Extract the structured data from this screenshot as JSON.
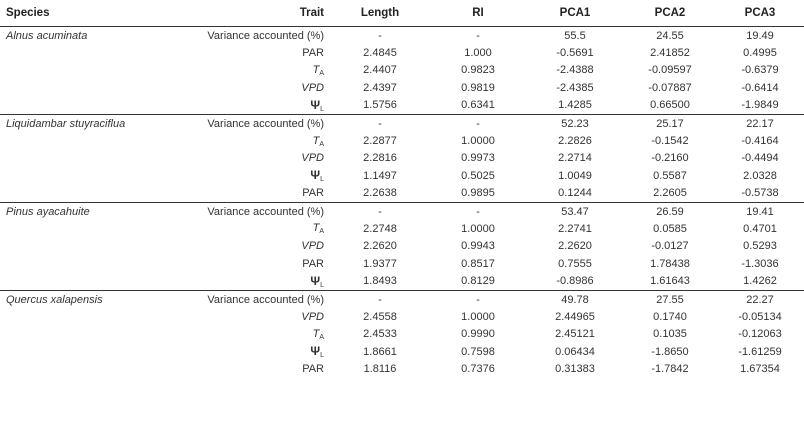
{
  "headers": {
    "species": "Species",
    "trait": "Trait",
    "length": "Length",
    "ri": "RI",
    "pca1": "PCA1",
    "pca2": "PCA2",
    "pca3": "PCA3"
  },
  "groups": [
    {
      "species": "Alnus acuminata",
      "rows": [
        {
          "trait": "Variance accounted (%)",
          "sub": "",
          "style": "plain",
          "length": "-",
          "ri": "-",
          "pca1": "55.5",
          "pca2": "24.55",
          "pca3": "19.49"
        },
        {
          "trait": "PAR",
          "sub": "",
          "style": "plain",
          "length": "2.4845",
          "ri": "1.000",
          "pca1": "-0.5691",
          "pca2": "2.41852",
          "pca3": "0.4995"
        },
        {
          "trait": "T",
          "sub": "A",
          "style": "italic",
          "length": "2.4407",
          "ri": "0.9823",
          "pca1": "-2.4388",
          "pca2": "-0.09597",
          "pca3": "-0.6379"
        },
        {
          "trait": "VPD",
          "sub": "",
          "style": "italic",
          "length": "2.4397",
          "ri": "0.9819",
          "pca1": "-2.4385",
          "pca2": "-0.07887",
          "pca3": "-0.6414"
        },
        {
          "trait": "Ψ",
          "sub": "L",
          "style": "bold",
          "length": "1.5756",
          "ri": "0.6341",
          "pca1": "1.4285",
          "pca2": "0.66500",
          "pca3": "-1.9849"
        }
      ]
    },
    {
      "species": "Liquidambar stuyraciflua",
      "rows": [
        {
          "trait": "Variance accounted (%)",
          "sub": "",
          "style": "plain",
          "length": "-",
          "ri": "-",
          "pca1": "52.23",
          "pca2": "25.17",
          "pca3": "22.17"
        },
        {
          "trait": "T",
          "sub": "A",
          "style": "italic",
          "length": "2.2877",
          "ri": "1.0000",
          "pca1": "2.2826",
          "pca2": "-0.1542",
          "pca3": "-0.4164"
        },
        {
          "trait": "VPD",
          "sub": "",
          "style": "italic",
          "length": "2.2816",
          "ri": "0.9973",
          "pca1": "2.2714",
          "pca2": "-0.2160",
          "pca3": "-0.4494"
        },
        {
          "trait": "Ψ",
          "sub": "L",
          "style": "bold",
          "length": "1.1497",
          "ri": "0.5025",
          "pca1": "1.0049",
          "pca2": "0.5587",
          "pca3": "2.0328"
        },
        {
          "trait": "PAR",
          "sub": "",
          "style": "plain",
          "length": "2.2638",
          "ri": "0.9895",
          "pca1": "0.1244",
          "pca2": "2.2605",
          "pca3": "-0.5738"
        }
      ]
    },
    {
      "species": "Pinus ayacahuite",
      "rows": [
        {
          "trait": "Variance accounted (%)",
          "sub": "",
          "style": "plain",
          "length": "-",
          "ri": "-",
          "pca1": "53.47",
          "pca2": "26.59",
          "pca3": "19.41"
        },
        {
          "trait": "T",
          "sub": "A",
          "style": "italic",
          "length": "2.2748",
          "ri": "1.0000",
          "pca1": "2.2741",
          "pca2": "0.0585",
          "pca3": "0.4701"
        },
        {
          "trait": "VPD",
          "sub": "",
          "style": "italic",
          "length": "2.2620",
          "ri": "0.9943",
          "pca1": "2.2620",
          "pca2": "-0.0127",
          "pca3": "0.5293"
        },
        {
          "trait": "PAR",
          "sub": "",
          "style": "plain",
          "length": "1.9377",
          "ri": "0.8517",
          "pca1": "0.7555",
          "pca2": "1.78438",
          "pca3": "-1.3036"
        },
        {
          "trait": "Ψ",
          "sub": "L",
          "style": "bold",
          "length": "1.8493",
          "ri": "0.8129",
          "pca1": "-0.8986",
          "pca2": "1.61643",
          "pca3": "1.4262"
        }
      ]
    },
    {
      "species": "Quercus xalapensis",
      "rows": [
        {
          "trait": "Variance accounted (%)",
          "sub": "",
          "style": "plain",
          "length": "-",
          "ri": "-",
          "pca1": "49.78",
          "pca2": "27.55",
          "pca3": "22.27"
        },
        {
          "trait": "VPD",
          "sub": "",
          "style": "italic",
          "length": "2.4558",
          "ri": "1.0000",
          "pca1": "2.44965",
          "pca2": "0.1740",
          "pca3": "-0.05134"
        },
        {
          "trait": "T",
          "sub": "A",
          "style": "italic",
          "length": "2.4533",
          "ri": "0.9990",
          "pca1": "2.45121",
          "pca2": "0.1035",
          "pca3": "-0.12063"
        },
        {
          "trait": "Ψ",
          "sub": "L",
          "style": "bold",
          "length": "1.8661",
          "ri": "0.7598",
          "pca1": "0.06434",
          "pca2": "-1.8650",
          "pca3": "-1.61259"
        },
        {
          "trait": "PAR",
          "sub": "",
          "style": "plain",
          "length": "1.8116",
          "ri": "0.7376",
          "pca1": "0.31383",
          "pca2": "-1.7842",
          "pca3": "1.67354"
        }
      ]
    }
  ]
}
